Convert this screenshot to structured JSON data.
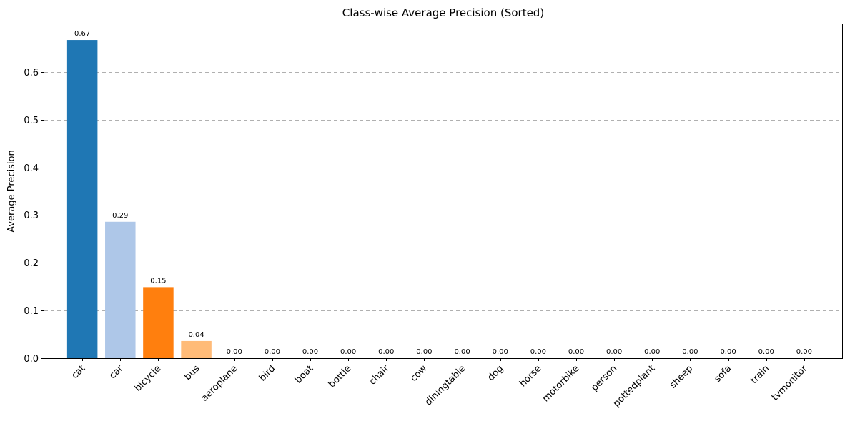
{
  "chart_data": {
    "type": "bar",
    "title": "Class-wise Average Precision (Sorted)",
    "xlabel": "",
    "ylabel": "Average Precision",
    "categories": [
      "cat",
      "car",
      "bicycle",
      "bus",
      "aeroplane",
      "bird",
      "boat",
      "bottle",
      "chair",
      "cow",
      "diningtable",
      "dog",
      "horse",
      "motorbike",
      "person",
      "pottedplant",
      "sheep",
      "sofa",
      "train",
      "tvmonitor"
    ],
    "values": [
      0.667,
      0.286,
      0.149,
      0.036,
      0,
      0,
      0,
      0,
      0,
      0,
      0,
      0,
      0,
      0,
      0,
      0,
      0,
      0,
      0,
      0
    ],
    "data_labels": [
      "0.67",
      "0.29",
      "0.15",
      "0.04",
      "0.00",
      "0.00",
      "0.00",
      "0.00",
      "0.00",
      "0.00",
      "0.00",
      "0.00",
      "0.00",
      "0.00",
      "0.00",
      "0.00",
      "0.00",
      "0.00",
      "0.00",
      "0.00"
    ],
    "bar_colors": [
      "#1f77b4",
      "#aec7e8",
      "#ff7f0e",
      "#ffbb78",
      "#2ca02c",
      "#98df8a",
      "#d62728",
      "#ff9896",
      "#9467bd",
      "#c5b0d5",
      "#8c564b",
      "#c49c94",
      "#e377c2",
      "#f7b6d2",
      "#7f7f7f",
      "#c7c7c7",
      "#bcbd22",
      "#dbdb8d",
      "#17becf",
      "#9edae5"
    ],
    "ylim": [
      0,
      0.7
    ],
    "yticks": [
      0.0,
      0.1,
      0.2,
      0.3,
      0.4,
      0.5,
      0.6
    ],
    "ytick_labels": [
      "0.0",
      "0.1",
      "0.2",
      "0.3",
      "0.4",
      "0.5",
      "0.6"
    ],
    "grid": "y",
    "grid_style": "dashed"
  }
}
